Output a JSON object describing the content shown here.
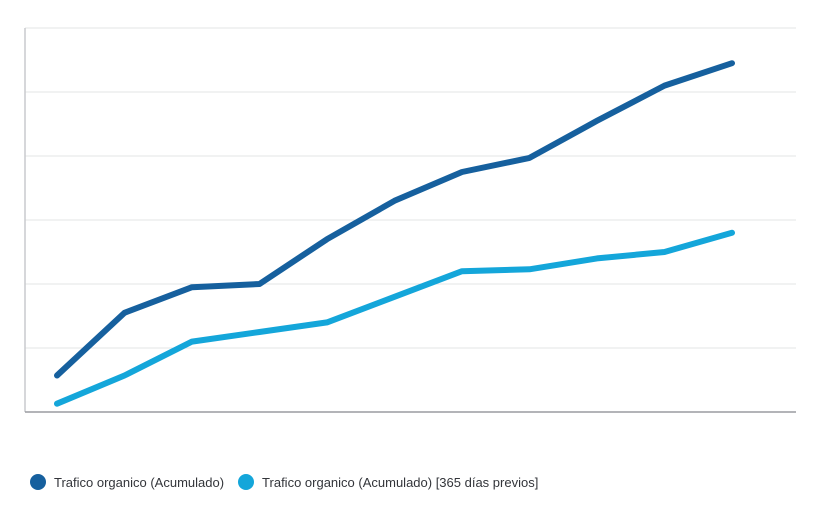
{
  "chart_data": {
    "type": "line",
    "title": "",
    "xlabel": "",
    "ylabel": "",
    "x": [
      1,
      2,
      3,
      4,
      5,
      6,
      7,
      8,
      9,
      10,
      11
    ],
    "ylim": [
      0,
      6
    ],
    "grid": true,
    "legend_position": "bottom-left",
    "series": [
      {
        "name": "Trafico organico (Acumulado)",
        "color": "#16609e",
        "values": [
          0.57,
          1.55,
          1.95,
          2.0,
          2.7,
          3.3,
          3.75,
          3.97,
          4.55,
          5.1,
          5.45
        ]
      },
      {
        "name": "Trafico organico (Acumulado) [365 días previos]",
        "color": "#14a6da",
        "values": [
          0.13,
          0.57,
          1.1,
          1.25,
          1.4,
          1.8,
          2.2,
          2.23,
          2.4,
          2.5,
          2.8
        ]
      }
    ]
  }
}
